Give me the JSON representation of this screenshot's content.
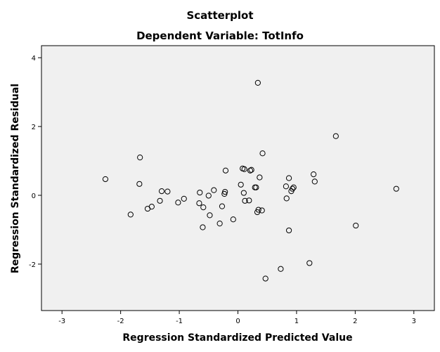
{
  "chart_data": {
    "type": "scatter",
    "title": "Scatterplot",
    "subtitle": "Dependent Variable: TotInfo",
    "xlabel": "Regression Standardized Predicted Value",
    "ylabel": "Regression Standardized Residual",
    "xlim": [
      -3.35,
      3.35
    ],
    "ylim": [
      -3.35,
      4.35
    ],
    "xticks": [
      "-3",
      "-2",
      "-1",
      "0",
      "1",
      "2",
      "3"
    ],
    "yticks": [
      "-2",
      "0",
      "2",
      "4"
    ],
    "grid": false,
    "plot_background": "#f0f0f0",
    "marker_color": "#000000",
    "points": [
      {
        "x": 0.34,
        "y": 3.27
      },
      {
        "x": 1.67,
        "y": 1.72
      },
      {
        "x": 0.42,
        "y": 1.22
      },
      {
        "x": -1.67,
        "y": 1.1
      },
      {
        "x": 0.08,
        "y": 0.78
      },
      {
        "x": 0.11,
        "y": 0.76
      },
      {
        "x": 0.21,
        "y": 0.72
      },
      {
        "x": 0.23,
        "y": 0.74
      },
      {
        "x": -0.21,
        "y": 0.72
      },
      {
        "x": 1.29,
        "y": 0.61
      },
      {
        "x": 0.37,
        "y": 0.52
      },
      {
        "x": 0.87,
        "y": 0.5
      },
      {
        "x": -2.26,
        "y": 0.47
      },
      {
        "x": 1.31,
        "y": 0.4
      },
      {
        "x": -1.68,
        "y": 0.33
      },
      {
        "x": 0.05,
        "y": 0.31
      },
      {
        "x": 0.82,
        "y": 0.26
      },
      {
        "x": 0.29,
        "y": 0.23
      },
      {
        "x": 0.31,
        "y": 0.23
      },
      {
        "x": 0.95,
        "y": 0.23
      },
      {
        "x": 0.93,
        "y": 0.19
      },
      {
        "x": 2.7,
        "y": 0.19
      },
      {
        "x": -0.41,
        "y": 0.15
      },
      {
        "x": 0.91,
        "y": 0.12
      },
      {
        "x": -1.3,
        "y": 0.12
      },
      {
        "x": -1.2,
        "y": 0.11
      },
      {
        "x": -0.22,
        "y": 0.1
      },
      {
        "x": -0.65,
        "y": 0.08
      },
      {
        "x": 0.1,
        "y": 0.07
      },
      {
        "x": -0.23,
        "y": 0.04
      },
      {
        "x": -0.5,
        "y": -0.01
      },
      {
        "x": -0.92,
        "y": -0.1
      },
      {
        "x": 0.83,
        "y": -0.09
      },
      {
        "x": -1.33,
        "y": -0.16
      },
      {
        "x": 0.19,
        "y": -0.15
      },
      {
        "x": 0.12,
        "y": -0.16
      },
      {
        "x": -1.02,
        "y": -0.21
      },
      {
        "x": -0.66,
        "y": -0.23
      },
      {
        "x": -0.27,
        "y": -0.32
      },
      {
        "x": -1.47,
        "y": -0.33
      },
      {
        "x": -0.59,
        "y": -0.35
      },
      {
        "x": -1.54,
        "y": -0.39
      },
      {
        "x": 0.35,
        "y": -0.42
      },
      {
        "x": 0.41,
        "y": -0.44
      },
      {
        "x": 0.33,
        "y": -0.49
      },
      {
        "x": -1.83,
        "y": -0.56
      },
      {
        "x": -0.48,
        "y": -0.58
      },
      {
        "x": -0.08,
        "y": -0.7
      },
      {
        "x": -0.31,
        "y": -0.82
      },
      {
        "x": 2.01,
        "y": -0.88
      },
      {
        "x": -0.6,
        "y": -0.93
      },
      {
        "x": 0.87,
        "y": -1.02
      },
      {
        "x": 1.22,
        "y": -1.97
      },
      {
        "x": 0.73,
        "y": -2.14
      },
      {
        "x": 0.47,
        "y": -2.42
      }
    ]
  }
}
